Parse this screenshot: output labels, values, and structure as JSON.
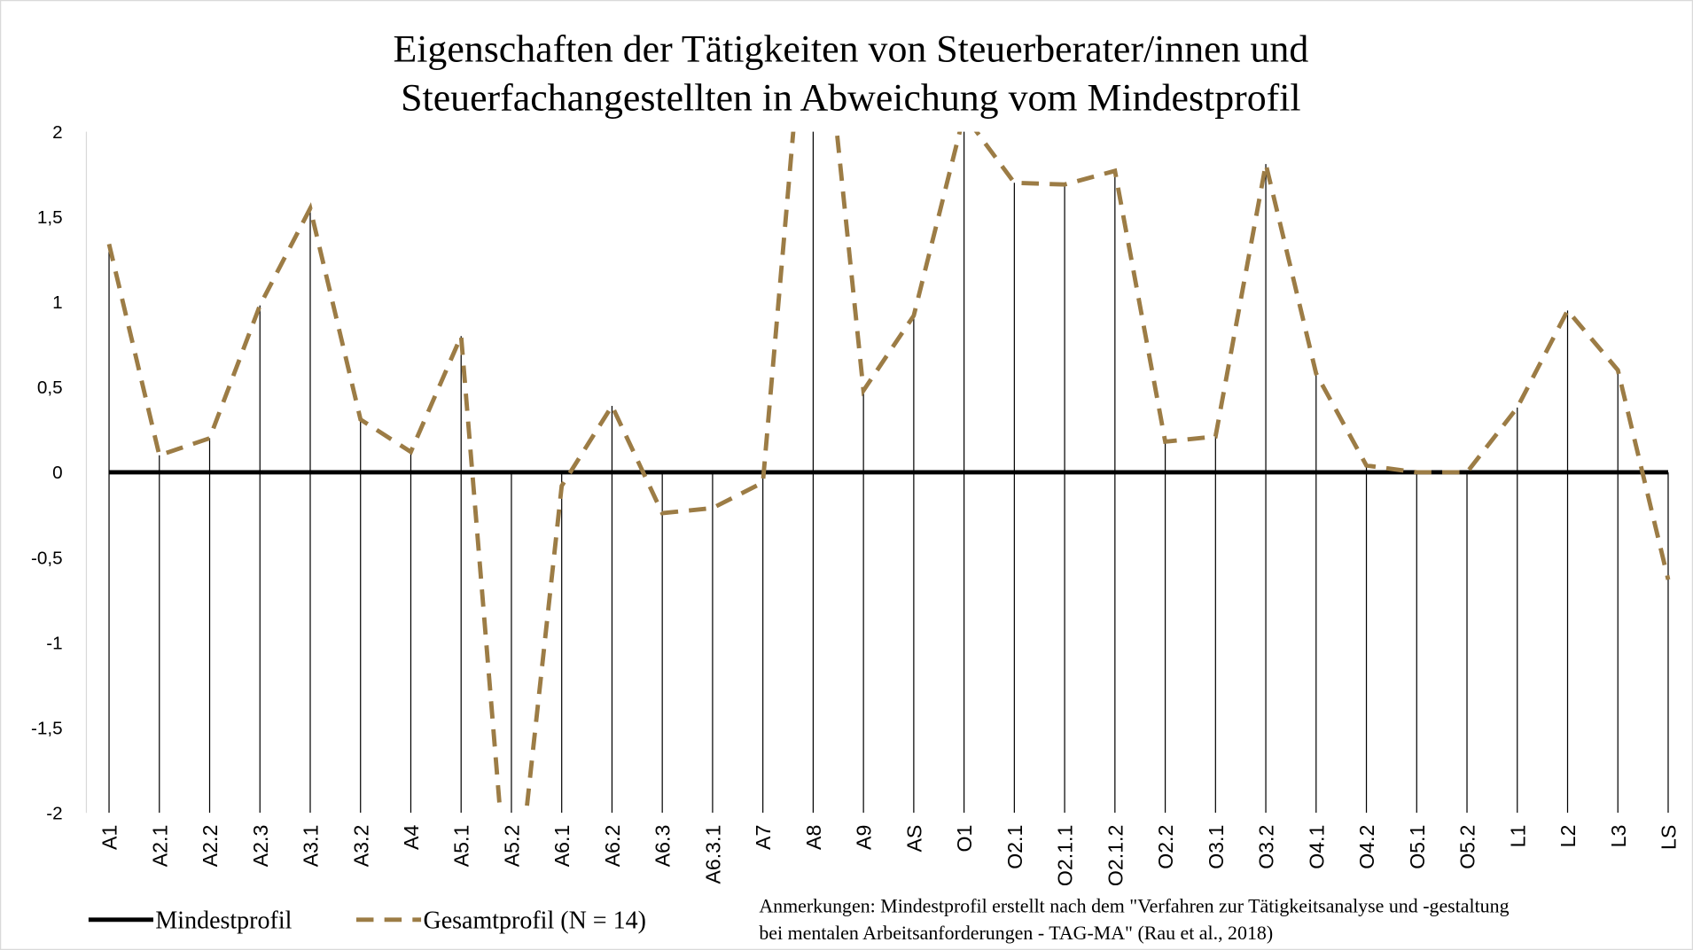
{
  "chart_data": {
    "type": "line",
    "title": [
      "Eigenschaften der Tätigkeiten von Steuerberater/innen und",
      "Steuerfachangestellten in Abweichung vom Mindestprofil"
    ],
    "categories": [
      "A1",
      "A2.1",
      "A2.2",
      "A2.3",
      "A3.1",
      "A3.2",
      "A4",
      "A5.1",
      "A5.2",
      "A6.1",
      "A6.2",
      "A6.3",
      "A6.3.1",
      "A7",
      "A8",
      "A9",
      "AS",
      "O1",
      "O2.1",
      "O2.1.1",
      "O2.1.2",
      "O2.2",
      "O3.1",
      "O3.2",
      "O4.1",
      "O4.2",
      "O5.1",
      "O5.2",
      "L1",
      "L2",
      "L3",
      "LS"
    ],
    "series": [
      {
        "name": "Mindestprofil",
        "color": "#000000",
        "style": "solid",
        "values": [
          0,
          0,
          0,
          0,
          0,
          0,
          0,
          0,
          0,
          0,
          0,
          0,
          0,
          0,
          0,
          0,
          0,
          0,
          0,
          0,
          0,
          0,
          0,
          0,
          0,
          0,
          0,
          0,
          0,
          0,
          0,
          0
        ]
      },
      {
        "name": "Gesamtprofil (N = 14)",
        "color": "#9c7c45",
        "style": "dashed",
        "values": [
          1.34,
          0.1,
          0.2,
          0.98,
          1.55,
          0.31,
          0.12,
          0.8,
          -2.8,
          -0.08,
          0.39,
          -0.24,
          -0.21,
          -0.06,
          3.35,
          0.48,
          0.92,
          2.1,
          1.7,
          1.69,
          1.77,
          0.18,
          0.21,
          1.81,
          0.58,
          0.04,
          0,
          0,
          0.38,
          0.95,
          0.6,
          -0.63
        ]
      }
    ],
    "ylim": [
      -2,
      2
    ],
    "yticks": [
      2,
      {
        "value": 1.5,
        "label": "1,5"
      },
      1,
      {
        "value": 0.5,
        "label": "0,5"
      },
      0,
      {
        "value": -0.5,
        "label": "-0,5"
      },
      -1,
      {
        "value": -1.5,
        "label": "-1,5"
      },
      -2
    ],
    "drop_lines": true,
    "annotation": [
      "Anmerkungen: Mindestprofil erstellt nach dem \"Verfahren zur Tätigkeitsanalyse und -gestaltung",
      "bei mentalen Arbeitsanforderungen - TAG-MA\" (Rau et al., 2018)"
    ]
  }
}
